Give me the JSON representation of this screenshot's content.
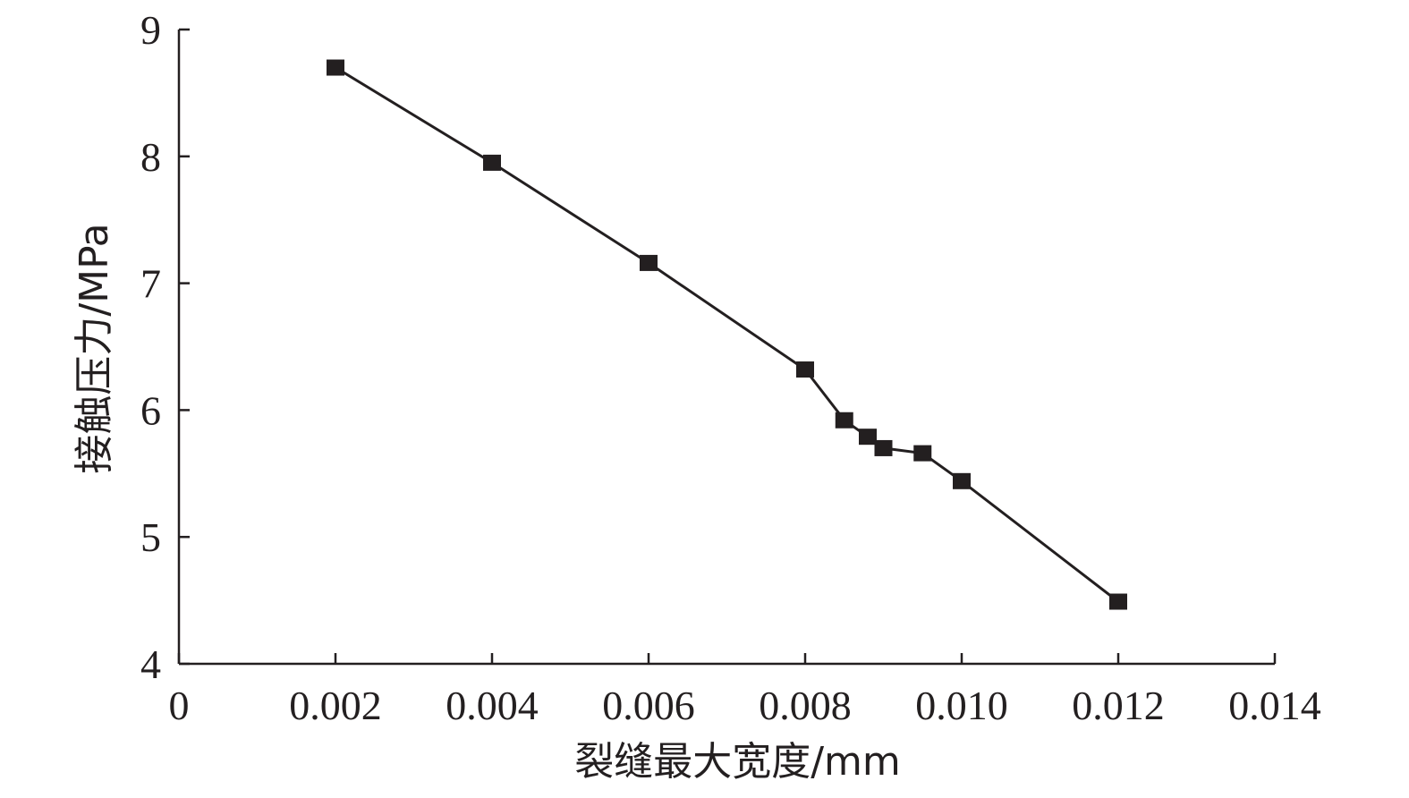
{
  "chart_data": {
    "type": "line",
    "xlabel": "裂缝最大宽度/mm",
    "ylabel": "接触压力/MPa",
    "xlim": [
      0,
      0.014
    ],
    "ylim": [
      4,
      9
    ],
    "x_ticks": [
      "0",
      "0.002",
      "0.004",
      "0.006",
      "0.008",
      "0.010",
      "0.012",
      "0.014"
    ],
    "x_tick_values": [
      0,
      0.002,
      0.004,
      0.006,
      0.008,
      0.01,
      0.012,
      0.014
    ],
    "y_ticks": [
      "4",
      "5",
      "6",
      "7",
      "8",
      "9"
    ],
    "y_tick_values": [
      4,
      5,
      6,
      7,
      8,
      9
    ],
    "grid": false,
    "legend": "none",
    "series": [
      {
        "marker": "square",
        "color": "#231f20",
        "x": [
          0.002,
          0.004,
          0.006,
          0.008,
          0.0085,
          0.0088,
          0.009,
          0.0095,
          0.01,
          0.012
        ],
        "y": [
          8.7,
          7.95,
          7.16,
          6.32,
          5.92,
          5.79,
          5.7,
          5.66,
          5.44,
          4.49
        ]
      }
    ]
  }
}
